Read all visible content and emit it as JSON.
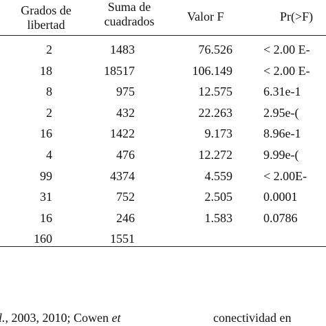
{
  "headers": {
    "df": [
      "Grados de",
      "libertad"
    ],
    "ss": [
      "Suma de",
      "cuadrados"
    ],
    "f": "Valor F",
    "p": "Pr(>F)"
  },
  "rows": [
    {
      "df": "2",
      "ss": "1483",
      "f": "76.526",
      "p": "< 2.00 E-"
    },
    {
      "df": "18",
      "ss": "18517",
      "f": "106.149",
      "p": "< 2.00 E-"
    },
    {
      "df": "8",
      "ss": "975",
      "f": "12.575",
      "p": "6.31e-1"
    },
    {
      "df": "2",
      "ss": "432",
      "f": "22.263",
      "p": "2.95e-("
    },
    {
      "df": "16",
      "ss": "1422",
      "f": "9.173",
      "p": "8.96e-1"
    },
    {
      "df": "4",
      "ss": "476",
      "f": "12.272",
      "p": "9.99e-("
    },
    {
      "df": "99",
      "ss": "4374",
      "f": "4.559",
      "p": "< 2.00E-"
    },
    {
      "df": "31",
      "ss": "752",
      "f": "2.505",
      "p": "0.0001"
    },
    {
      "df": "16",
      "ss": "246",
      "f": "1.583",
      "p": "0.0786"
    },
    {
      "df": "160",
      "ss": "1551",
      "f": "",
      "p": ""
    }
  ],
  "footer": {
    "left_a": "l.",
    "left_b": ", 2003, 2010; Cowen ",
    "left_c": "et",
    "right": "conectividad en"
  }
}
